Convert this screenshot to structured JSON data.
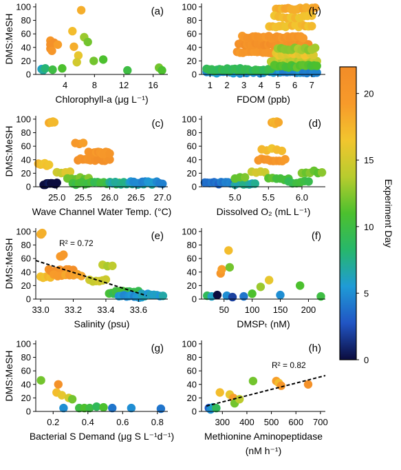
{
  "figure": {
    "y_axis_label_rows": [
      "DMS:MeSH",
      "DMS:MeSH",
      "DMS:MeSH",
      "DMS:MeSH"
    ]
  },
  "colorbar": {
    "label": "Experiment Day",
    "range": [
      0,
      22
    ],
    "ticks": [
      "0",
      "5",
      "10",
      "15",
      "20"
    ],
    "colors": [
      "#0b0c3e",
      "#2155c4",
      "#1f9bd6",
      "#27b76b",
      "#4cc02e",
      "#b8cc2e",
      "#f2c52e",
      "#f79a2a",
      "#f28c28"
    ]
  },
  "chart_data": [
    {
      "type": "scatter",
      "panel": "(a)",
      "xlabel": "Chlorophyll-a (μg L⁻¹)",
      "ylabel": "DMS:MeSH",
      "xlim": [
        0,
        18
      ],
      "ylim": [
        0,
        105
      ],
      "xticks": [
        "4",
        "8",
        "12",
        "16"
      ],
      "yticks": [
        "0",
        "20",
        "40",
        "60",
        "80",
        "100"
      ],
      "points": [
        {
          "x": 0.8,
          "y": 8,
          "day": 6
        },
        {
          "x": 1.0,
          "y": 6,
          "day": 7
        },
        {
          "x": 1.3,
          "y": 9,
          "day": 8
        },
        {
          "x": 2.0,
          "y": 50,
          "day": 20
        },
        {
          "x": 2.0,
          "y": 44,
          "day": 21
        },
        {
          "x": 2.0,
          "y": 38,
          "day": 21
        },
        {
          "x": 2.2,
          "y": 35,
          "day": 20
        },
        {
          "x": 2.5,
          "y": 47,
          "day": 21
        },
        {
          "x": 3.0,
          "y": 44,
          "day": 19
        },
        {
          "x": 2.3,
          "y": 7,
          "day": 10
        },
        {
          "x": 3.6,
          "y": 9,
          "day": 11
        },
        {
          "x": 5.0,
          "y": 64,
          "day": 17
        },
        {
          "x": 5.2,
          "y": 41,
          "day": 18
        },
        {
          "x": 5.8,
          "y": 28,
          "day": 16
        },
        {
          "x": 5.6,
          "y": 18,
          "day": 15
        },
        {
          "x": 6.2,
          "y": 95,
          "day": 18
        },
        {
          "x": 6.6,
          "y": 55,
          "day": 13
        },
        {
          "x": 7.1,
          "y": 48,
          "day": 12
        },
        {
          "x": 7.9,
          "y": 20,
          "day": 12
        },
        {
          "x": 9.2,
          "y": 22,
          "day": 11
        },
        {
          "x": 12.5,
          "y": 6,
          "day": 10
        },
        {
          "x": 16.8,
          "y": 10,
          "day": 12
        },
        {
          "x": 17.2,
          "y": 6,
          "day": 11
        }
      ]
    },
    {
      "type": "scatter",
      "panel": "(b)",
      "xlabel": "FDOM (ppb)",
      "ylabel": "",
      "xlim": [
        0.5,
        7.8
      ],
      "ylim": [
        0,
        105
      ],
      "xticks": [
        "1",
        "2",
        "3",
        "4",
        "5",
        "6",
        "7"
      ],
      "yticks": [
        "0",
        "20",
        "40",
        "60",
        "80",
        "100"
      ],
      "bands": [
        {
          "x_range": [
            0.8,
            7.3
          ],
          "y": 3,
          "day": 5,
          "count": 34
        },
        {
          "x_range": [
            0.8,
            4.6
          ],
          "y": 7,
          "day": 9,
          "count": 26
        },
        {
          "x_range": [
            2.6,
            4.8
          ],
          "y": 33,
          "day": 20,
          "count": 14
        },
        {
          "x_range": [
            2.7,
            6.8
          ],
          "y": 45,
          "day": 21,
          "count": 34
        },
        {
          "x_range": [
            2.9,
            6.5
          ],
          "y": 55,
          "day": 20,
          "count": 24
        },
        {
          "x_range": [
            4.6,
            7.3
          ],
          "y": 20,
          "day": 14,
          "count": 18
        },
        {
          "x_range": [
            4.8,
            7.3
          ],
          "y": 12,
          "day": 11,
          "count": 16
        },
        {
          "x_range": [
            4.9,
            7.1
          ],
          "y": 30,
          "day": 16,
          "count": 14
        },
        {
          "x_range": [
            5.0,
            7.2
          ],
          "y": 38,
          "day": 13,
          "count": 12
        },
        {
          "x_range": [
            4.5,
            7.0
          ],
          "y": 72,
          "day": 17,
          "count": 14
        },
        {
          "x_range": [
            4.9,
            7.2
          ],
          "y": 97,
          "day": 18,
          "count": 14
        },
        {
          "x_range": [
            4.8,
            7.0
          ],
          "y": 85,
          "day": 17,
          "count": 10
        }
      ]
    },
    {
      "type": "scatter",
      "panel": "(c)",
      "xlabel": "Wave Channel Water Temp. (°C)",
      "ylabel": "DMS:MeSH",
      "xlim": [
        24.6,
        27.1
      ],
      "ylim": [
        0,
        105
      ],
      "xticks": [
        "25.0",
        "25.5",
        "26.0",
        "26.5",
        "27.0"
      ],
      "yticks": [
        "0",
        "20",
        "40",
        "60",
        "80",
        "100"
      ],
      "bands": [
        {
          "x_range": [
            24.75,
            25.0
          ],
          "y": 4,
          "day": 0,
          "count": 10
        },
        {
          "x_range": [
            24.65,
            24.85
          ],
          "y": 33,
          "day": 17,
          "count": 6
        },
        {
          "x_range": [
            24.85,
            24.95
          ],
          "y": 95,
          "day": 18,
          "count": 5
        },
        {
          "x_range": [
            25.0,
            25.25
          ],
          "y": 22,
          "day": 15,
          "count": 4
        },
        {
          "x_range": [
            25.35,
            25.5
          ],
          "y": 65,
          "day": 19,
          "count": 3
        },
        {
          "x_range": [
            25.4,
            26.0
          ],
          "y": 40,
          "day": 21,
          "count": 14
        },
        {
          "x_range": [
            25.6,
            26.0
          ],
          "y": 50,
          "day": 20,
          "count": 12
        },
        {
          "x_range": [
            25.2,
            25.6
          ],
          "y": 12,
          "day": 12,
          "count": 6
        },
        {
          "x_range": [
            25.3,
            26.3
          ],
          "y": 5,
          "day": 10,
          "count": 18
        },
        {
          "x_range": [
            26.0,
            26.8
          ],
          "y": 5,
          "day": 7,
          "count": 16
        },
        {
          "x_range": [
            26.4,
            27.0
          ],
          "y": 6,
          "day": 5,
          "count": 12
        }
      ]
    },
    {
      "type": "scatter",
      "panel": "(d)",
      "xlabel": "Dissolved O₂ (mL L⁻¹)",
      "ylabel": "",
      "xlim": [
        4.5,
        6.35
      ],
      "ylim": [
        0,
        105
      ],
      "xticks": [
        "5.0",
        "5.5",
        "6.0"
      ],
      "yticks": [
        "0",
        "20",
        "40",
        "60",
        "80",
        "100"
      ],
      "bands": [
        {
          "x_range": [
            4.55,
            5.0
          ],
          "y": 5,
          "day": 4,
          "count": 14
        },
        {
          "x_range": [
            5.0,
            5.3
          ],
          "y": 5,
          "day": 7,
          "count": 8
        },
        {
          "x_range": [
            5.0,
            5.15
          ],
          "y": 14,
          "day": 12,
          "count": 3
        },
        {
          "x_range": [
            5.25,
            5.45
          ],
          "y": 22,
          "day": 15,
          "count": 4
        },
        {
          "x_range": [
            5.35,
            5.75
          ],
          "y": 40,
          "day": 20,
          "count": 10
        },
        {
          "x_range": [
            5.4,
            5.7
          ],
          "y": 55,
          "day": 17,
          "count": 5
        },
        {
          "x_range": [
            5.55,
            5.65
          ],
          "y": 95,
          "day": 18,
          "count": 5
        },
        {
          "x_range": [
            5.5,
            5.8
          ],
          "y": 12,
          "day": 11,
          "count": 6
        },
        {
          "x_range": [
            5.8,
            6.1
          ],
          "y": 7,
          "day": 10,
          "count": 6
        },
        {
          "x_range": [
            6.0,
            6.3
          ],
          "y": 22,
          "day": 12,
          "count": 6
        }
      ]
    },
    {
      "type": "scatter",
      "panel": "(e)",
      "xlabel": "Salinity (psu)",
      "ylabel": "DMS:MeSH",
      "xlim": [
        32.97,
        33.78
      ],
      "ylim": [
        0,
        105
      ],
      "xticks": [
        "33.0",
        "33.2",
        "33.4",
        "33.6"
      ],
      "yticks": [
        "0",
        "20",
        "40",
        "60",
        "80",
        "100"
      ],
      "r2": "R² = 0.72",
      "fit": {
        "x": [
          32.97,
          33.65
        ],
        "y": [
          57,
          5
        ]
      },
      "bands": [
        {
          "x_range": [
            33.0,
            33.01
          ],
          "y": 96,
          "day": 18,
          "count": 4
        },
        {
          "x_range": [
            33.0,
            33.06
          ],
          "y": 33,
          "day": 17,
          "count": 5
        },
        {
          "x_range": [
            33.05,
            33.2
          ],
          "y": 42,
          "day": 21,
          "count": 12
        },
        {
          "x_range": [
            33.08,
            33.25
          ],
          "y": 35,
          "day": 19,
          "count": 8
        },
        {
          "x_range": [
            33.12,
            33.14
          ],
          "y": 65,
          "day": 19,
          "count": 3
        },
        {
          "x_range": [
            33.3,
            33.4
          ],
          "y": 28,
          "day": 15,
          "count": 6
        },
        {
          "x_range": [
            33.38,
            33.44
          ],
          "y": 50,
          "day": 14,
          "count": 3
        },
        {
          "x_range": [
            33.42,
            33.6
          ],
          "y": 10,
          "day": 10,
          "count": 14
        },
        {
          "x_range": [
            33.48,
            33.62
          ],
          "y": 4,
          "day": 5,
          "count": 10
        },
        {
          "x_range": [
            33.62,
            33.75
          ],
          "y": 6,
          "day": 6,
          "count": 8
        }
      ]
    },
    {
      "type": "scatter",
      "panel": "(f)",
      "xlabel": "DMSPₜ (nM)",
      "ylabel": "",
      "xlim": [
        10,
        230
      ],
      "ylim": [
        0,
        105
      ],
      "xticks": [
        "50",
        "100",
        "150",
        "200"
      ],
      "yticks": [
        "0",
        "20",
        "40",
        "60",
        "80",
        "100"
      ],
      "points": [
        {
          "x": 20,
          "y": 5,
          "day": 9
        },
        {
          "x": 28,
          "y": 4,
          "day": 6
        },
        {
          "x": 38,
          "y": 6,
          "day": 0
        },
        {
          "x": 44,
          "y": 38,
          "day": 20
        },
        {
          "x": 46,
          "y": 44,
          "day": 19
        },
        {
          "x": 55,
          "y": 5,
          "day": 5
        },
        {
          "x": 58,
          "y": 72,
          "day": 17
        },
        {
          "x": 60,
          "y": 47,
          "day": 12
        },
        {
          "x": 65,
          "y": 3,
          "day": 2
        },
        {
          "x": 85,
          "y": 4,
          "day": 4
        },
        {
          "x": 100,
          "y": 8,
          "day": 11
        },
        {
          "x": 115,
          "y": 18,
          "day": 13
        },
        {
          "x": 130,
          "y": 28,
          "day": 16
        },
        {
          "x": 150,
          "y": 6,
          "day": 5
        },
        {
          "x": 185,
          "y": 20,
          "day": 11
        },
        {
          "x": 222,
          "y": 4,
          "day": 10
        }
      ]
    },
    {
      "type": "scatter",
      "panel": "(g)",
      "xlabel": "Bacterial S Demand (μg S L⁻¹d⁻¹)",
      "ylabel": "DMS:MeSH",
      "xlim": [
        0.1,
        0.86
      ],
      "ylim": [
        0,
        105
      ],
      "xticks": [
        "0.2",
        "0.4",
        "0.6",
        "0.8"
      ],
      "yticks": [
        "0",
        "20",
        "40",
        "60",
        "80",
        "100"
      ],
      "points": [
        {
          "x": 0.13,
          "y": 46,
          "day": 12
        },
        {
          "x": 0.23,
          "y": 40,
          "day": 21
        },
        {
          "x": 0.22,
          "y": 28,
          "day": 17
        },
        {
          "x": 0.25,
          "y": 24,
          "day": 16
        },
        {
          "x": 0.29,
          "y": 20,
          "day": 15
        },
        {
          "x": 0.31,
          "y": 18,
          "day": 12
        },
        {
          "x": 0.26,
          "y": 5,
          "day": 5
        },
        {
          "x": 0.35,
          "y": 5,
          "day": 10
        },
        {
          "x": 0.38,
          "y": 5,
          "day": 11
        },
        {
          "x": 0.41,
          "y": 5,
          "day": 10
        },
        {
          "x": 0.45,
          "y": 7,
          "day": 9
        },
        {
          "x": 0.49,
          "y": 6,
          "day": 11
        },
        {
          "x": 0.54,
          "y": 5,
          "day": 4
        },
        {
          "x": 0.65,
          "y": 5,
          "day": 5
        },
        {
          "x": 0.82,
          "y": 4,
          "day": 4
        }
      ]
    },
    {
      "type": "scatter",
      "panel": "(h)",
      "xlabel": "Methionine Aminopeptidase",
      "xlabel_line2": "(nM h⁻¹)",
      "ylabel": "",
      "xlim": [
        215,
        720
      ],
      "ylim": [
        0,
        105
      ],
      "xticks": [
        "300",
        "400",
        "500",
        "600",
        "700"
      ],
      "yticks": [
        "0",
        "20",
        "40",
        "60",
        "80",
        "100"
      ],
      "r2": "R² = 0.82",
      "fit": {
        "x": [
          235,
          720
        ],
        "y": [
          8,
          53
        ]
      },
      "points": [
        {
          "x": 245,
          "y": 5,
          "day": 3
        },
        {
          "x": 252,
          "y": 3,
          "day": 5
        },
        {
          "x": 262,
          "y": 6,
          "day": 6
        },
        {
          "x": 275,
          "y": 5,
          "day": 9
        },
        {
          "x": 290,
          "y": 28,
          "day": 17
        },
        {
          "x": 330,
          "y": 25,
          "day": 16
        },
        {
          "x": 345,
          "y": 20,
          "day": 19
        },
        {
          "x": 350,
          "y": 12,
          "day": 12
        },
        {
          "x": 370,
          "y": 18,
          "day": 14
        },
        {
          "x": 425,
          "y": 45,
          "day": 12
        },
        {
          "x": 520,
          "y": 45,
          "day": 19
        },
        {
          "x": 530,
          "y": 42,
          "day": 17
        },
        {
          "x": 540,
          "y": 38,
          "day": 20
        },
        {
          "x": 650,
          "y": 40,
          "day": 21
        }
      ]
    }
  ]
}
